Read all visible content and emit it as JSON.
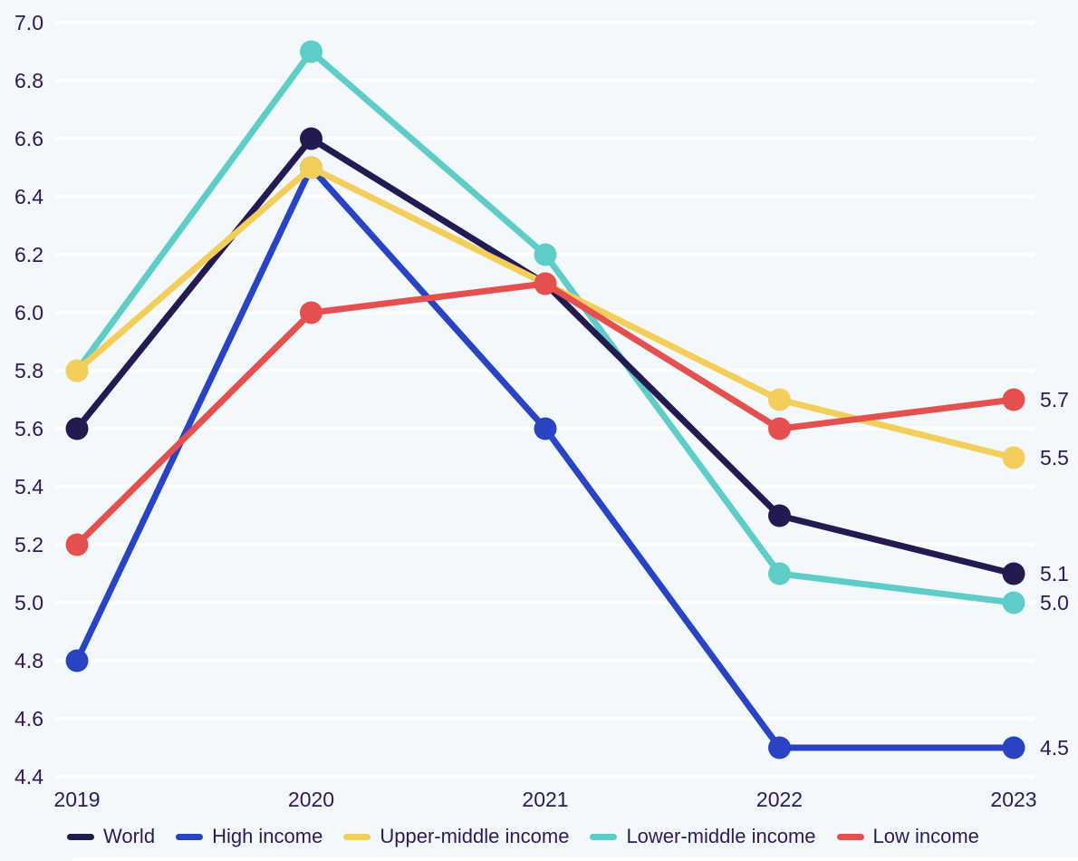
{
  "chart_data": {
    "type": "line",
    "title": "",
    "xlabel": "",
    "ylabel": "",
    "x": [
      "2019",
      "2020",
      "2021",
      "2022",
      "2023"
    ],
    "series": [
      {
        "name": "World",
        "color": "#241a52",
        "z": 1,
        "values": [
          5.6,
          6.6,
          6.1,
          5.3,
          5.1
        ],
        "end_label": "5.1"
      },
      {
        "name": "High income",
        "color": "#2843c4",
        "z": 2,
        "values": [
          4.8,
          6.5,
          5.6,
          4.5,
          4.5
        ],
        "end_label": "4.5"
      },
      {
        "name": "Upper-middle income",
        "color": "#f4ce5a",
        "z": 3,
        "values": [
          5.8,
          6.5,
          6.1,
          5.7,
          5.5
        ],
        "end_label": "5.5"
      },
      {
        "name": "Lower-middle income",
        "color": "#5ecdc8",
        "z": 0,
        "values": [
          5.8,
          6.9,
          6.2,
          5.1,
          5.0
        ],
        "end_label": "5.0"
      },
      {
        "name": "Low income",
        "color": "#e5504f",
        "z": 4,
        "values": [
          5.2,
          6.0,
          6.1,
          5.6,
          5.7
        ],
        "end_label": "5.7"
      }
    ],
    "y_ticks": [
      "7.0",
      "6.8",
      "6.6",
      "6.4",
      "6.2",
      "6.0",
      "5.8",
      "5.6",
      "5.4",
      "5.2",
      "5.0",
      "4.8",
      "4.6",
      "4.4"
    ],
    "ylim": [
      4.4,
      7.0
    ],
    "grid": true,
    "legend_position": "bottom"
  },
  "colors": {
    "background": "#f3f8fd",
    "gridline": "#ffffff",
    "text": "#2e1a58"
  }
}
